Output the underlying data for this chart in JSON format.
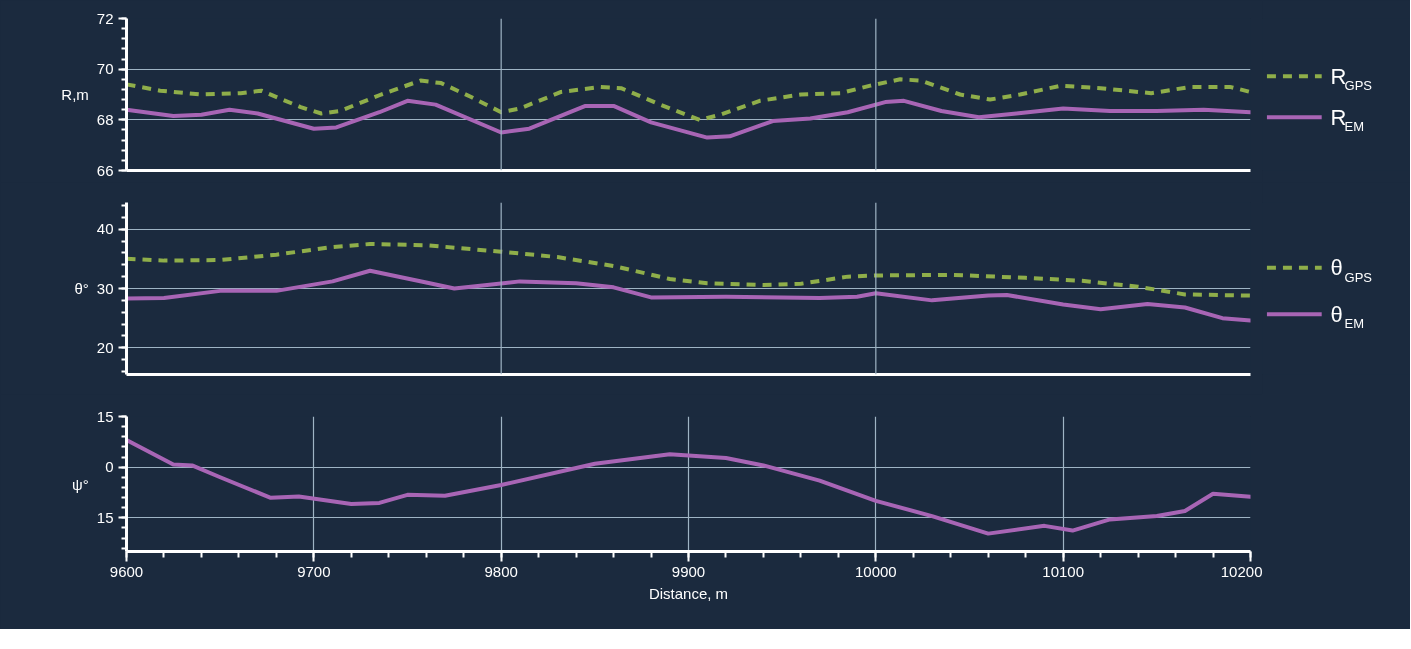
{
  "chart_data": [
    {
      "type": "line",
      "ylabel": "R,m",
      "xlim": [
        9600,
        10200
      ],
      "ylim": [
        66,
        72
      ],
      "yticks": [
        66,
        68,
        70,
        72
      ],
      "grid": "y",
      "legend": "right",
      "tick_labels": "y",
      "ref_lines": [
        {
          "axis": "x",
          "value": 9800,
          "color": "#9fb4c4"
        },
        {
          "axis": "x",
          "value": 10000,
          "color": "#9fb4c4"
        }
      ],
      "series": [
        {
          "name": "R$_{GPS}$",
          "color": "#8fae4a",
          "line_style": "dashed",
          "x": [
            9600,
            9618,
            9640,
            9661,
            9672,
            9693,
            9704,
            9714,
            9736,
            9757,
            9768,
            9784,
            9800,
            9810,
            9832,
            9853,
            9864,
            9885,
            9906,
            9917,
            9938,
            9960,
            9981,
            9997,
            10013,
            10024,
            10045,
            10061,
            10077,
            10099,
            10120,
            10147,
            10168,
            10189,
            10200
          ],
          "values": [
            69.4,
            69.15,
            69.0,
            69.05,
            69.15,
            68.5,
            68.25,
            68.35,
            69.0,
            69.55,
            69.45,
            68.9,
            68.3,
            68.45,
            69.1,
            69.3,
            69.25,
            68.6,
            68.0,
            68.2,
            68.75,
            69.0,
            69.05,
            69.35,
            69.6,
            69.55,
            69.0,
            68.8,
            69.0,
            69.35,
            69.25,
            69.05,
            69.3,
            69.3,
            69.1
          ]
        },
        {
          "name": "R$_{EM}$",
          "color": "#a865b5",
          "line_style": "solid",
          "x": [
            9600,
            9625,
            9640,
            9655,
            9670,
            9700,
            9712,
            9735,
            9750,
            9765,
            9800,
            9815,
            9845,
            9860,
            9880,
            9910,
            9922,
            9945,
            9965,
            9985,
            10005,
            10015,
            10035,
            10055,
            10075,
            10100,
            10125,
            10150,
            10175,
            10200
          ],
          "values": [
            68.4,
            68.15,
            68.2,
            68.4,
            68.25,
            67.65,
            67.7,
            68.3,
            68.75,
            68.6,
            67.5,
            67.65,
            68.55,
            68.55,
            67.9,
            67.3,
            67.35,
            67.95,
            68.05,
            68.3,
            68.7,
            68.75,
            68.35,
            68.1,
            68.25,
            68.45,
            68.35,
            68.35,
            68.4,
            68.3
          ]
        }
      ]
    },
    {
      "type": "line",
      "ylabel": "θ°",
      "xlim": [
        9600,
        10200
      ],
      "ylim": [
        15.5,
        44.5
      ],
      "yticks": [
        20,
        30,
        40
      ],
      "grid": "y",
      "legend": "right",
      "tick_labels": "y",
      "ref_lines": [
        {
          "axis": "x",
          "value": 9800,
          "color": "#9fb4c4"
        },
        {
          "axis": "x",
          "value": 10000,
          "color": "#9fb4c4"
        }
      ],
      "series": [
        {
          "name": "θ$_{GPS}$",
          "color": "#8fae4a",
          "line_style": "dashed",
          "x": [
            9600,
            9620,
            9650,
            9680,
            9710,
            9730,
            9760,
            9800,
            9830,
            9860,
            9890,
            9910,
            9940,
            9960,
            9985,
            10000,
            10040,
            10080,
            10110,
            10140,
            10165,
            10200
          ],
          "values": [
            35.0,
            34.7,
            34.8,
            35.7,
            37.0,
            37.5,
            37.3,
            36.2,
            35.3,
            33.8,
            31.6,
            30.9,
            30.6,
            30.8,
            32.0,
            32.2,
            32.3,
            31.8,
            31.3,
            30.3,
            29.0,
            28.8
          ]
        },
        {
          "name": "θ$_{EM}$",
          "color": "#a865b5",
          "line_style": "solid",
          "x": [
            9600,
            9620,
            9650,
            9680,
            9710,
            9730,
            9760,
            9775,
            9790,
            9810,
            9840,
            9860,
            9880,
            9920,
            9950,
            9970,
            9990,
            10000,
            10030,
            10060,
            10070,
            10100,
            10120,
            10145,
            10165,
            10185,
            10200
          ],
          "values": [
            28.3,
            28.4,
            29.6,
            29.6,
            31.2,
            33.0,
            31.0,
            30.0,
            30.5,
            31.2,
            30.9,
            30.2,
            28.5,
            28.6,
            28.5,
            28.4,
            28.6,
            29.2,
            28.0,
            28.8,
            28.9,
            27.3,
            26.5,
            27.4,
            26.8,
            25.0,
            24.6
          ]
        }
      ]
    },
    {
      "type": "line",
      "ylabel": "ψ°",
      "xlabel": "Distance, m",
      "xlim": [
        9600,
        10200
      ],
      "xticks": [
        9600,
        9700,
        9800,
        9900,
        10000,
        10100,
        10200
      ],
      "ylim": [
        -25,
        15
      ],
      "yticks": [
        15,
        0,
        {
          "value": -15,
          "label": "15"
        }
      ],
      "grid": true,
      "series": [
        {
          "color": "#a865b5",
          "line_style": "solid",
          "x": [
            9600,
            9625,
            9635,
            9650,
            9677,
            9692,
            9720,
            9735,
            9750,
            9770,
            9800,
            9850,
            9890,
            9920,
            9940,
            9970,
            10000,
            10030,
            10060,
            10090,
            10105,
            10125,
            10150,
            10165,
            10180,
            10200
          ],
          "values": [
            8.0,
            0.8,
            0.5,
            -3.0,
            -9.1,
            -8.7,
            -10.9,
            -10.6,
            -8.2,
            -8.5,
            -5.3,
            1.0,
            3.8,
            2.7,
            0.5,
            -4.0,
            -10.0,
            -14.5,
            -19.7,
            -17.4,
            -18.8,
            -15.5,
            -14.5,
            -13.0,
            -7.9,
            -8.8
          ]
        }
      ]
    }
  ]
}
